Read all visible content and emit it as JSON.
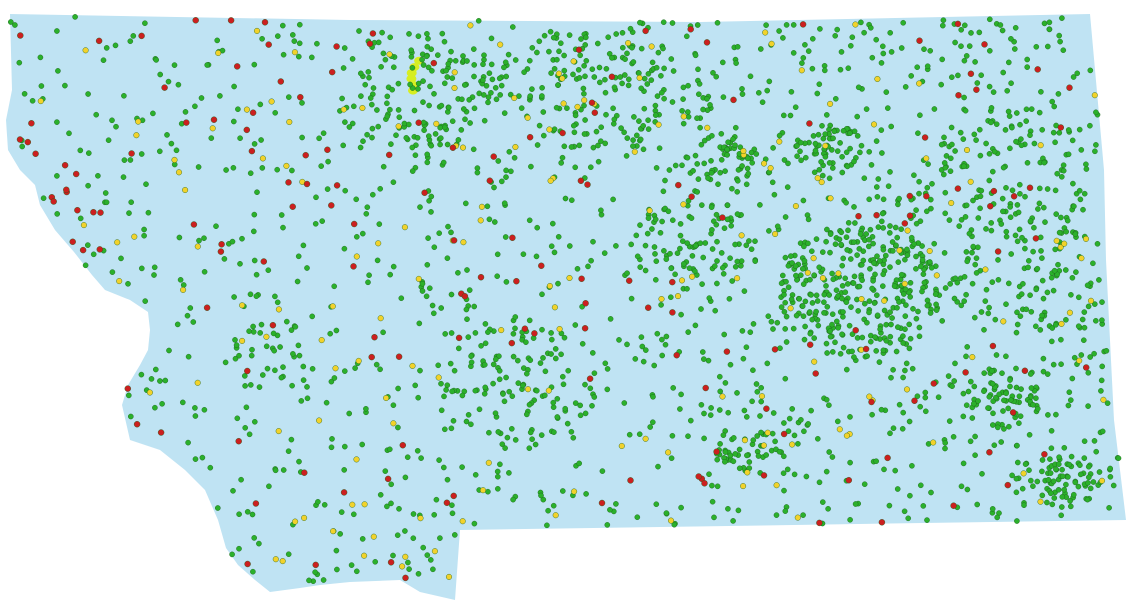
{
  "map": {
    "region": "Montana",
    "colors": {
      "background": "#ffffff",
      "land_fill": "#bfe3f3",
      "green_point": "#2bb02b",
      "yellow_point": "#f2d22b",
      "red_point": "#cc1f1f",
      "highlight_cluster": "#d6ee22",
      "point_stroke": "#1b5e1b"
    },
    "point_categories": [
      "green",
      "yellow",
      "red"
    ]
  }
}
